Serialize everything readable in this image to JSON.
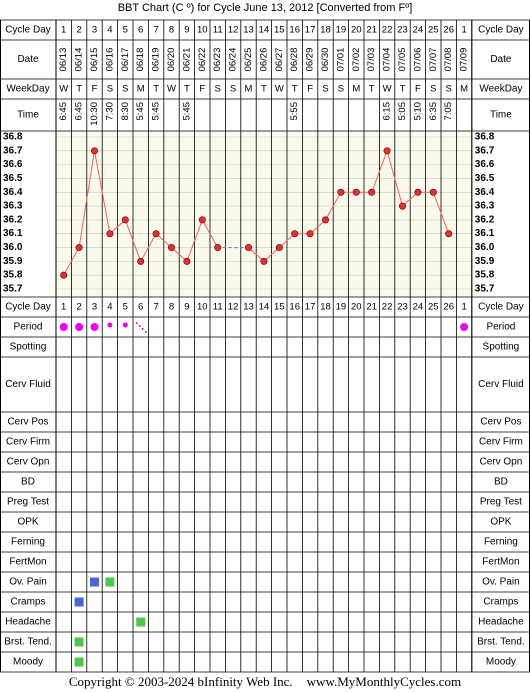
{
  "header": {
    "title": "BBT Chart (C º) for Cycle June 13, 2012  [Converted from Fº]"
  },
  "footer": {
    "copyright": "Copyright © 2003-2024 bInfinity Web Inc.",
    "site": "www.MyMonthlyCycles.com"
  },
  "row_labels": {
    "cycle_day": "Cycle Day",
    "date": "Date",
    "weekday": "WeekDay",
    "time": "Time",
    "period": "Period",
    "spotting": "Spotting",
    "cerv_fluid": "Cerv Fluid",
    "cerv_pos": "Cerv Pos",
    "cerv_firm": "Cerv Firm",
    "cerv_opn": "Cerv Opn",
    "bd": "BD",
    "preg_test": "Preg Test",
    "opk": "OPK",
    "ferning": "Ferning",
    "fertmon": "FertMon",
    "ov_pain": "Ov. Pain",
    "cramps": "Cramps",
    "headache": "Headache",
    "brst_tend": "Brst. Tend.",
    "moody": "Moody"
  },
  "colors": {
    "chart_bg": "#FAFAEC",
    "grid": "#C8C8C8",
    "line": "#F26060",
    "dot": "#E03030",
    "dash": "#7070FF",
    "period_dot": "#F000F0",
    "symptom_green": "#4CC84C",
    "symptom_blue": "#4C64D8"
  },
  "chart_data": {
    "type": "line",
    "cycle_days": [
      "1",
      "2",
      "3",
      "4",
      "5",
      "6",
      "7",
      "8",
      "9",
      "10",
      "11",
      "12",
      "13",
      "14",
      "15",
      "16",
      "17",
      "18",
      "19",
      "20",
      "21",
      "22",
      "23",
      "24",
      "25",
      "26",
      "1"
    ],
    "dates": [
      "06/13",
      "06/14",
      "06/15",
      "06/16",
      "06/17",
      "06/18",
      "06/19",
      "06/20",
      "06/21",
      "06/22",
      "06/23",
      "06/24",
      "06/25",
      "06/26",
      "06/27",
      "06/28",
      "06/29",
      "06/30",
      "07/01",
      "07/02",
      "07/03",
      "07/04",
      "07/05",
      "07/06",
      "07/07",
      "07/08",
      "07/09"
    ],
    "weekdays": [
      "W",
      "T",
      "F",
      "S",
      "S",
      "M",
      "T",
      "W",
      "T",
      "F",
      "S",
      "S",
      "M",
      "T",
      "W",
      "T",
      "F",
      "S",
      "S",
      "M",
      "T",
      "W",
      "T",
      "F",
      "S",
      "S",
      "M"
    ],
    "times": [
      "6:45",
      "6:45",
      "10:30",
      "7:30",
      "8:30",
      "5:45",
      "5:45",
      "",
      "5:45",
      "",
      "",
      "",
      "",
      "",
      "",
      "5:55",
      "",
      "",
      "",
      "",
      "",
      "6:15",
      "5:05",
      "5:10",
      "6:35",
      "7:05",
      ""
    ],
    "temps": [
      35.8,
      36.0,
      36.7,
      36.1,
      36.2,
      35.9,
      36.1,
      36.0,
      35.9,
      36.2,
      36.0,
      null,
      36.0,
      35.9,
      36.0,
      36.1,
      36.1,
      36.2,
      36.4,
      36.4,
      36.4,
      36.7,
      36.3,
      36.4,
      36.4,
      36.1,
      null
    ],
    "ylim": [
      35.7,
      36.8
    ],
    "y_ticks": [
      "36.8",
      "36.7",
      "36.6",
      "36.5",
      "36.4",
      "36.3",
      "36.2",
      "36.1",
      "36.0",
      "35.9",
      "35.8",
      "35.7"
    ],
    "gap_dashed": [
      11,
      13
    ],
    "period": {
      "1": "heavy",
      "2": "heavy",
      "3": "heavy",
      "4": "light",
      "5": "light",
      "6": "spotting",
      "27": "heavy"
    },
    "symptoms": {
      "ov_pain": {
        "3": "blue",
        "4": "green"
      },
      "cramps": {
        "2": "blue"
      },
      "headache": {
        "6": "green"
      },
      "brst_tend": {
        "2": "green"
      },
      "moody": {
        "2": "green"
      }
    }
  }
}
